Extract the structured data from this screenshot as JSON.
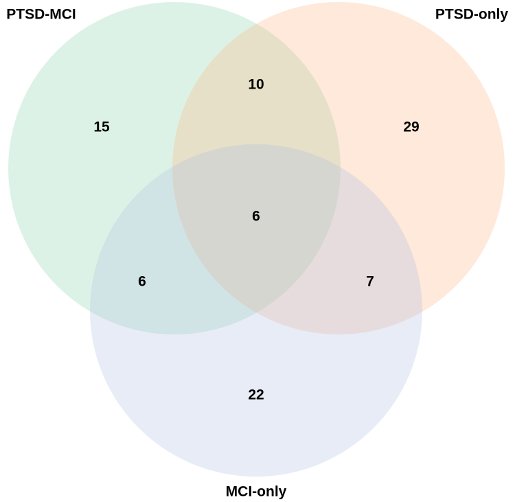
{
  "sets": [
    {
      "label": "PTSD-MCI",
      "color": "#8fd4ac"
    },
    {
      "label": "PTSD-only",
      "color": "#fbb783"
    },
    {
      "label": "MCI-only",
      "color": "#b3c1e6"
    }
  ],
  "regions": {
    "ptsd_mci_only": 15,
    "ptsd_mci_and_ptsd_only": 10,
    "ptsd_only_only": 29,
    "all_three": 6,
    "ptsd_mci_and_mci_only": 6,
    "ptsd_only_and_mci_only": 7,
    "mci_only_only": 22
  }
}
